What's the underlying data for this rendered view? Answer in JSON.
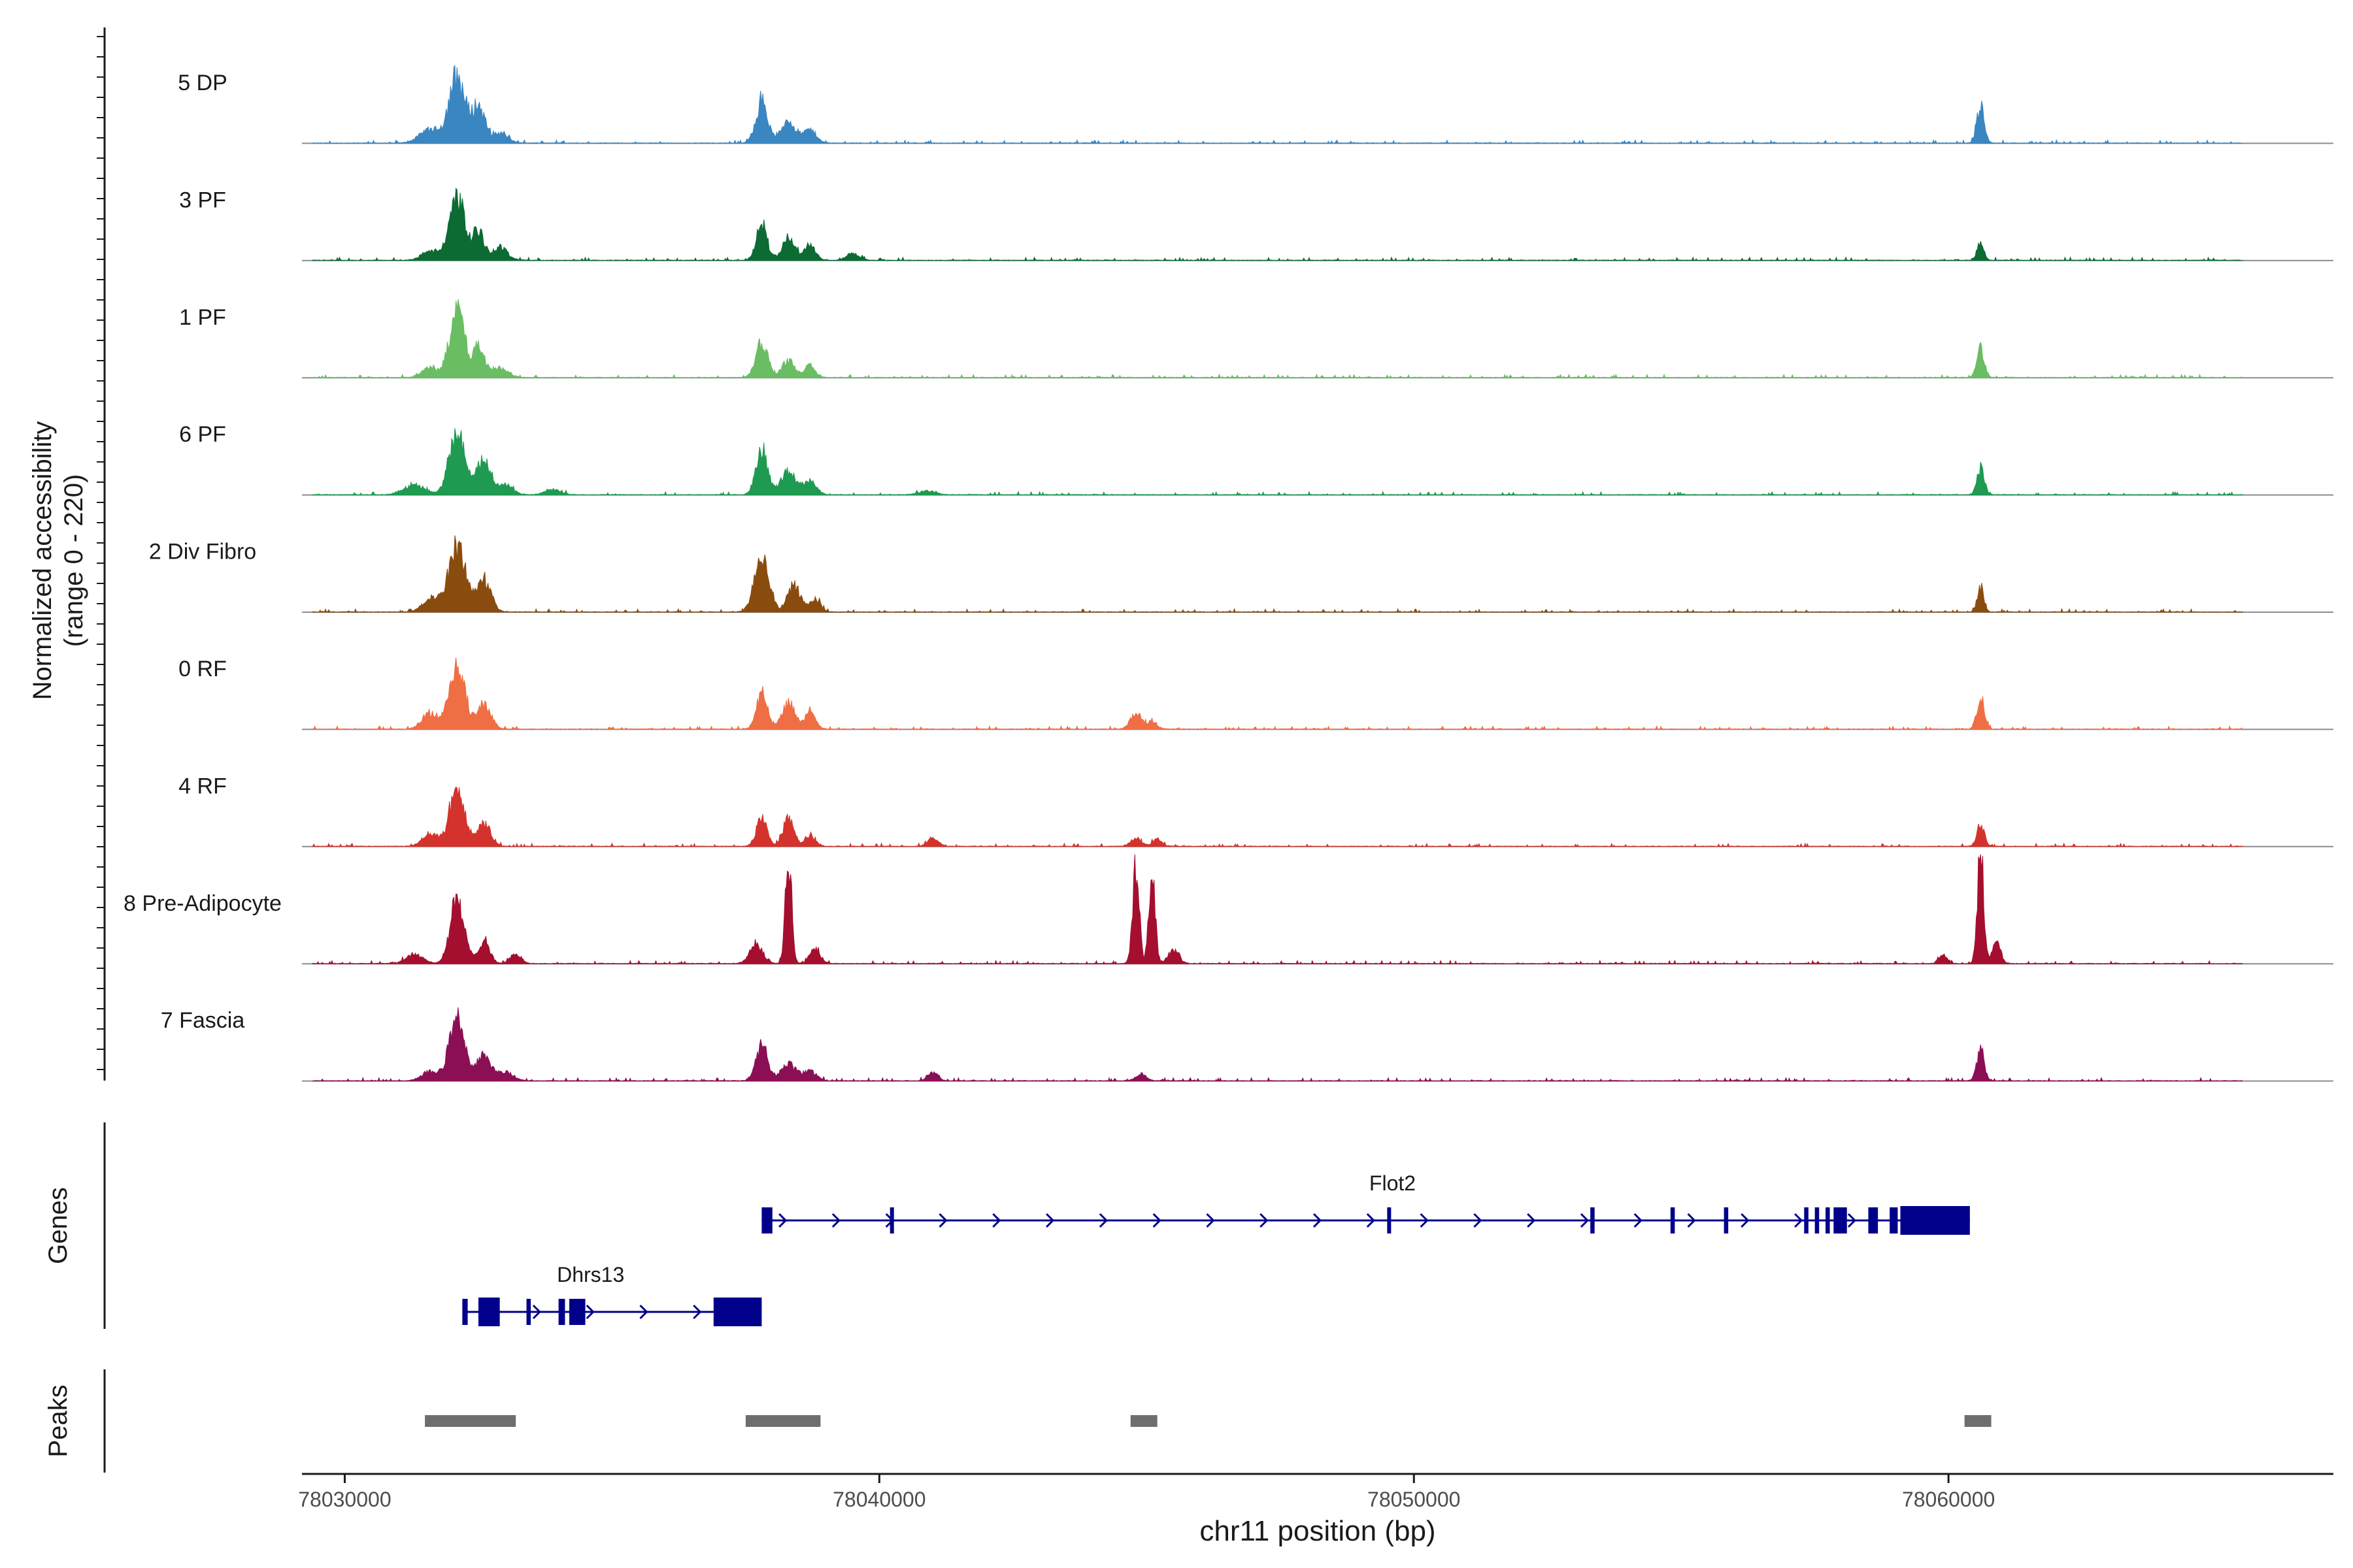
{
  "chart_data": {
    "type": "area",
    "title": "",
    "ylabel": "Normalized accessibility",
    "ylabel_range": "(range 0 - 220)",
    "xlabel": "chr11 position (bp)",
    "xlim": [
      78029200,
      78067200
    ],
    "ylim": [
      0,
      220
    ],
    "xticks": [
      78030000,
      78040000,
      78050000,
      78060000
    ],
    "xtick_labels": [
      "78030000",
      "78040000",
      "78050000",
      "78060000"
    ],
    "tracks": [
      {
        "name": "5 DP",
        "color": "#3a86c0",
        "peaks": [
          [
            78032100,
            200,
            150
          ],
          [
            78032500,
            110,
            120
          ],
          [
            78031600,
            40,
            200
          ],
          [
            78032900,
            30,
            150
          ],
          [
            78037800,
            130,
            110
          ],
          [
            78038300,
            70,
            130
          ],
          [
            78038700,
            40,
            120
          ],
          [
            78060600,
            110,
            70
          ]
        ]
      },
      {
        "name": "3 PF",
        "color": "#0b6b33",
        "peaks": [
          [
            78032100,
            200,
            140
          ],
          [
            78032500,
            90,
            100
          ],
          [
            78032900,
            40,
            140
          ],
          [
            78031600,
            30,
            150
          ],
          [
            78037800,
            110,
            100
          ],
          [
            78038300,
            70,
            120
          ],
          [
            78038700,
            50,
            100
          ],
          [
            78039500,
            20,
            120
          ],
          [
            78060600,
            60,
            60
          ]
        ]
      },
      {
        "name": "1 PF",
        "color": "#6abd63",
        "peaks": [
          [
            78032100,
            200,
            140
          ],
          [
            78032500,
            90,
            110
          ],
          [
            78032900,
            30,
            150
          ],
          [
            78031600,
            30,
            150
          ],
          [
            78037800,
            110,
            110
          ],
          [
            78038300,
            50,
            120
          ],
          [
            78038700,
            35,
            100
          ],
          [
            78060600,
            90,
            70
          ]
        ]
      },
      {
        "name": "6 PF",
        "color": "#1e9a51",
        "peaks": [
          [
            78032100,
            200,
            140
          ],
          [
            78032600,
            110,
            130
          ],
          [
            78031300,
            30,
            200
          ],
          [
            78033000,
            30,
            140
          ],
          [
            78037800,
            130,
            110
          ],
          [
            78038300,
            70,
            140
          ],
          [
            78038700,
            40,
            120
          ],
          [
            78033900,
            15,
            150
          ],
          [
            78040900,
            12,
            150
          ],
          [
            78060600,
            80,
            70
          ]
        ]
      },
      {
        "name": "2 Div Fibro",
        "color": "#8a4c0e",
        "peaks": [
          [
            78032100,
            200,
            160
          ],
          [
            78032600,
            100,
            130
          ],
          [
            78031600,
            40,
            150
          ],
          [
            78037800,
            180,
            130
          ],
          [
            78038400,
            80,
            120
          ],
          [
            78038800,
            40,
            100
          ],
          [
            78060600,
            75,
            60
          ]
        ]
      },
      {
        "name": "0 RF",
        "color": "#ef6e44",
        "peaks": [
          [
            78032100,
            200,
            140
          ],
          [
            78032600,
            80,
            130
          ],
          [
            78031600,
            50,
            150
          ],
          [
            78037800,
            110,
            100
          ],
          [
            78038300,
            80,
            120
          ],
          [
            78038700,
            50,
            100
          ],
          [
            78044800,
            50,
            100
          ],
          [
            78045100,
            25,
            90
          ],
          [
            78060600,
            95,
            70
          ]
        ]
      },
      {
        "name": "4 RF",
        "color": "#d4322c",
        "peaks": [
          [
            78032100,
            170,
            140
          ],
          [
            78032600,
            70,
            130
          ],
          [
            78031600,
            40,
            150
          ],
          [
            78037800,
            85,
            100
          ],
          [
            78038300,
            85,
            100
          ],
          [
            78038700,
            30,
            100
          ],
          [
            78041000,
            25,
            100
          ],
          [
            78044800,
            25,
            100
          ],
          [
            78045200,
            20,
            90
          ],
          [
            78060600,
            65,
            70
          ]
        ]
      },
      {
        "name": "8 Pre-Adipocyte",
        "color": "#a50f2f",
        "peaks": [
          [
            78032100,
            190,
            130
          ],
          [
            78032600,
            70,
            110
          ],
          [
            78031300,
            30,
            150
          ],
          [
            78033200,
            30,
            100
          ],
          [
            78037700,
            60,
            120
          ],
          [
            78038300,
            330,
            60
          ],
          [
            78038800,
            40,
            100
          ],
          [
            78044800,
            300,
            60
          ],
          [
            78045100,
            280,
            60
          ],
          [
            78045500,
            40,
            100
          ],
          [
            78060600,
            340,
            60
          ],
          [
            78060900,
            60,
            80
          ],
          [
            78059900,
            25,
            80
          ]
        ]
      },
      {
        "name": "7 Fascia",
        "color": "#8b0f55",
        "peaks": [
          [
            78032100,
            200,
            140
          ],
          [
            78032600,
            80,
            130
          ],
          [
            78031600,
            30,
            150
          ],
          [
            78033000,
            25,
            150
          ],
          [
            78037800,
            110,
            110
          ],
          [
            78038300,
            50,
            140
          ],
          [
            78038700,
            30,
            120
          ],
          [
            78041000,
            25,
            90
          ],
          [
            78044900,
            20,
            100
          ],
          [
            78060600,
            90,
            70
          ]
        ]
      }
    ],
    "genes_label": "Genes",
    "genes": [
      {
        "name": "Flot2",
        "start": 78037800,
        "end": 78060400,
        "row": 1,
        "exons": [
          [
            78037800,
            78038000
          ],
          [
            78040200,
            78040260
          ],
          [
            78049500,
            78049570
          ],
          [
            78053300,
            78053380
          ],
          [
            78054800,
            78054880
          ],
          [
            78055800,
            78055880
          ],
          [
            78057300,
            78057380
          ],
          [
            78057500,
            78057580
          ],
          [
            78057700,
            78057780
          ],
          [
            78057850,
            78058000
          ],
          [
            78058000,
            78058100
          ],
          [
            78058500,
            78058680
          ],
          [
            78058900,
            78059050
          ],
          [
            78059100,
            78060400
          ]
        ]
      },
      {
        "name": "Dhrs13",
        "start": 78032200,
        "end": 78037800,
        "row": 2,
        "exons": [
          [
            78032200,
            78032300
          ],
          [
            78032500,
            78032900
          ],
          [
            78033400,
            78033480
          ],
          [
            78034000,
            78034120
          ],
          [
            78034200,
            78034500
          ],
          [
            78036900,
            78037800
          ]
        ]
      }
    ],
    "peaks_label": "Peaks",
    "peak_regions": [
      [
        78031500,
        78033200
      ],
      [
        78037500,
        78038900
      ],
      [
        78044700,
        78045200
      ],
      [
        78060300,
        78060800
      ]
    ]
  }
}
